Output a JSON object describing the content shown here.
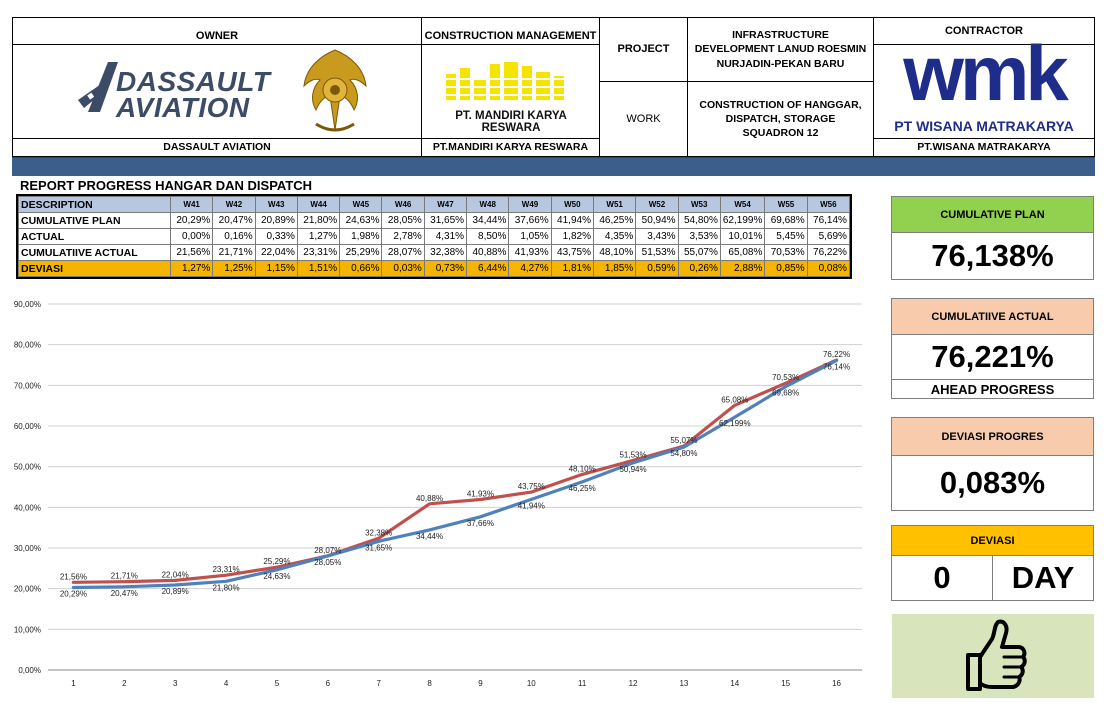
{
  "header": {
    "owner_label": "OWNER",
    "owner_name": "DASSAULT AVIATION",
    "owner_logo_text_1": "DASSAULT",
    "owner_logo_text_2": "AVIATION",
    "cm_label": "CONSTRUCTION MANAGEMENT",
    "cm_logo_text": "PT. MANDIRI KARYA RESWARA",
    "cm_name": "PT.MANDIRI KARYA RESWARA",
    "project_label": "PROJECT",
    "project_value": "INFRASTRUCTURE DEVELOPMENT LANUD ROESMIN NURJADIN-PEKAN BARU",
    "work_label": "WORK",
    "work_value": "CONSTRUCTION OF HANGGAR, DISPATCH, STORAGE SQUADRON 12",
    "contractor_label": "CONTRACTOR",
    "contractor_logo_text": "wmk",
    "contractor_logo_sub": "PT WISANA MATRAKARYA",
    "contractor_name": "PT.WISANA MATRAKARYA"
  },
  "report": {
    "title": "REPORT PROGRESS HANGAR DAN DISPATCH",
    "description_label": "DESCRIPTION",
    "weeks": [
      "W41",
      "W42",
      "W43",
      "W44",
      "W45",
      "W46",
      "W47",
      "W48",
      "W49",
      "W50",
      "W51",
      "W52",
      "W53",
      "W54",
      "W55",
      "W56"
    ],
    "rows": [
      {
        "label": "CUMULATIVE PLAN",
        "values": [
          "20,29%",
          "20,47%",
          "20,89%",
          "21,80%",
          "24,63%",
          "28,05%",
          "31,65%",
          "34,44%",
          "37,66%",
          "41,94%",
          "46,25%",
          "50,94%",
          "54,80%",
          "62,199%",
          "69,68%",
          "76,14%"
        ]
      },
      {
        "label": "ACTUAL",
        "values": [
          "0,00%",
          "0,16%",
          "0,33%",
          "1,27%",
          "1,98%",
          "2,78%",
          "4,31%",
          "8,50%",
          "1,05%",
          "1,82%",
          "4,35%",
          "3,43%",
          "3,53%",
          "10,01%",
          "5,45%",
          "5,69%"
        ]
      },
      {
        "label": "CUMULATIIVE ACTUAL",
        "values": [
          "21,56%",
          "21,71%",
          "22,04%",
          "23,31%",
          "25,29%",
          "28,07%",
          "32,38%",
          "40,88%",
          "41,93%",
          "43,75%",
          "48,10%",
          "51,53%",
          "55,07%",
          "65,08%",
          "70,53%",
          "76,22%"
        ]
      },
      {
        "label": "DEVIASI",
        "values": [
          "1,27%",
          "1,25%",
          "1,15%",
          "1,51%",
          "0,66%",
          "0,03%",
          "0,73%",
          "6,44%",
          "4,27%",
          "1,81%",
          "1,85%",
          "0,59%",
          "0,26%",
          "2,88%",
          "0,85%",
          "0,08%"
        ]
      }
    ]
  },
  "kpis": {
    "plan_label": "CUMULATIVE PLAN",
    "plan_value": "76,138%",
    "actual_label": "CUMULATIIVE ACTUAL",
    "actual_value": "76,221%",
    "actual_status": "AHEAD PROGRESS",
    "dev_label": "DEVIASI PROGRES",
    "dev_value": "0,083%",
    "deviasi_label": "DEVIASI",
    "deviasi_days": "0",
    "deviasi_unit": "DAY",
    "status_icon": "thumbs-up-icon",
    "colors": {
      "plan_head": "#92d050",
      "actual_head": "#f8cbad",
      "deviasi_head": "#ffc000",
      "thumb_bg": "#d8e4bc"
    }
  },
  "chart_data": {
    "type": "line",
    "x": [
      1,
      2,
      3,
      4,
      5,
      6,
      7,
      8,
      9,
      10,
      11,
      12,
      13,
      14,
      15,
      16
    ],
    "ylim": [
      0,
      90
    ],
    "yticks": [
      "0,00%",
      "10,00%",
      "20,00%",
      "30,00%",
      "40,00%",
      "50,00%",
      "60,00%",
      "70,00%",
      "80,00%",
      "90,00%"
    ],
    "grid": true,
    "series": [
      {
        "color": "#4f81bd",
        "values": [
          20.29,
          20.47,
          20.89,
          21.8,
          24.63,
          28.05,
          31.65,
          34.44,
          37.66,
          41.94,
          46.25,
          50.94,
          54.8,
          62.199,
          69.68,
          76.14
        ],
        "labels": [
          "20,29%",
          "20,47%",
          "20,89%",
          "21,80%",
          "24,63%",
          "28,05%",
          "31,65%",
          "34,44%",
          "37,66%",
          "41,94%",
          "46,25%",
          "50,94%",
          "54,80%",
          "62,199%",
          "69,68%",
          "76,14%"
        ]
      },
      {
        "color": "#c0504d",
        "values": [
          21.56,
          21.71,
          22.04,
          23.31,
          25.29,
          28.07,
          32.38,
          40.88,
          41.93,
          43.75,
          48.1,
          51.53,
          55.07,
          65.08,
          70.53,
          76.22
        ],
        "labels": [
          "21,56%",
          "21,71%",
          "22,04%",
          "23,31%",
          "25,29%",
          "28,07%",
          "32,38%",
          "40,88%",
          "41,93%",
          "43,75%",
          "48,10%",
          "51,53%",
          "55,07%",
          "65,08%",
          "70,53%",
          "76,22%"
        ]
      }
    ]
  }
}
